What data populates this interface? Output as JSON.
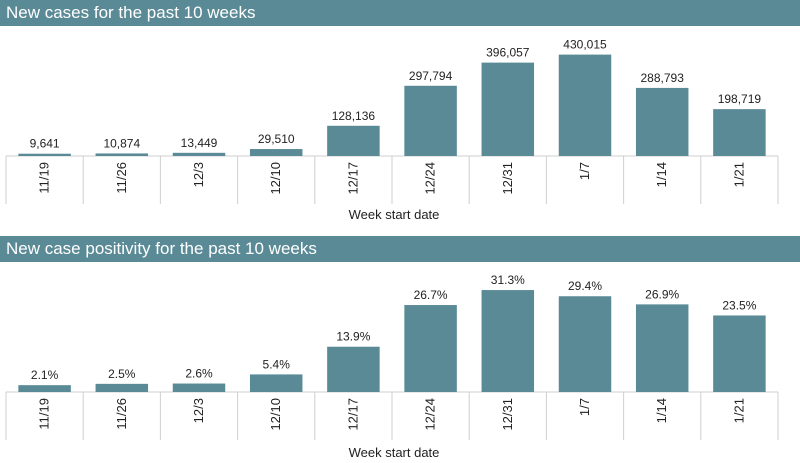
{
  "accent_color": "#5a8a96",
  "chart_data": [
    {
      "type": "bar",
      "title": "New cases for the past 10 weeks",
      "xlabel": "Week start date",
      "ylabel": "",
      "categories": [
        "11/19",
        "11/26",
        "12/3",
        "12/10",
        "12/17",
        "12/24",
        "12/31",
        "1/7",
        "1/14",
        "1/21"
      ],
      "values": [
        9641,
        10874,
        13449,
        29510,
        128136,
        297794,
        396057,
        430015,
        288793,
        198719
      ],
      "data_labels": [
        "9,641",
        "10,874",
        "13,449",
        "29,510",
        "128,136",
        "297,794",
        "396,057",
        "430,015",
        "288,793",
        "198,719"
      ],
      "ylim": [
        0,
        475000
      ],
      "grid": false,
      "legend": "none"
    },
    {
      "type": "bar",
      "title": "New case positivity for the past 10 weeks",
      "xlabel": "Week start date",
      "ylabel": "",
      "categories": [
        "11/19",
        "11/26",
        "12/3",
        "12/10",
        "12/17",
        "12/24",
        "12/31",
        "1/7",
        "1/14",
        "1/21"
      ],
      "values": [
        2.1,
        2.5,
        2.6,
        5.4,
        13.9,
        26.7,
        31.3,
        29.4,
        26.9,
        23.5
      ],
      "data_labels": [
        "2.1%",
        "2.5%",
        "2.6%",
        "5.4%",
        "13.9%",
        "26.7%",
        "31.3%",
        "29.4%",
        "26.9%",
        "23.5%"
      ],
      "ylim": [
        0,
        35
      ],
      "grid": false,
      "legend": "none"
    }
  ]
}
